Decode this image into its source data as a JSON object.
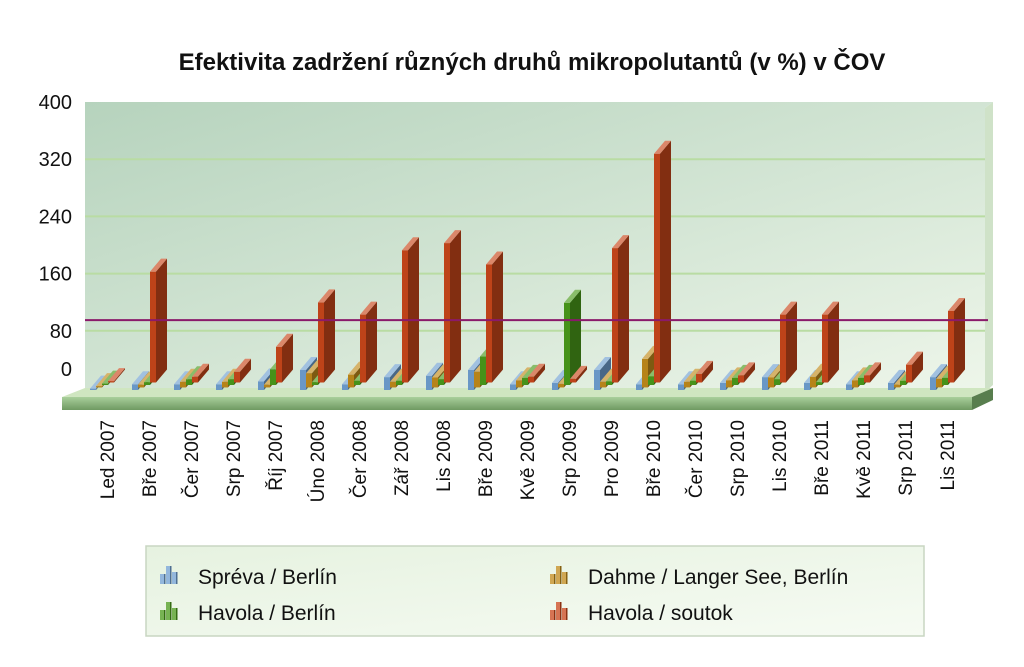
{
  "chart_data": {
    "type": "bar",
    "title": "Efektivita zadržení různých druhů mikropolutantů (v %) v ČOV",
    "xlabel": "",
    "ylabel": "",
    "ylim": [
      0,
      400
    ],
    "yticks": [
      "400",
      "320",
      "240",
      "160",
      "80",
      "0"
    ],
    "reference_line": 95,
    "categories": [
      "Led 2007",
      "Bře 2007",
      "Čer 2007",
      "Srp 2007",
      "Říj 2007",
      "Úno 2008",
      "Čer 2008",
      "Zář 2008",
      "Lis 2008",
      "Bře 2009",
      "Kvě 2009",
      "Srp 2009",
      "Pro 2009",
      "Bře 2010",
      "Čer 2010",
      "Srp 2010",
      "Lis 2010",
      "Bře 2011",
      "Kvě 2011",
      "Srp 2011",
      "Lis 2011"
    ],
    "series": [
      {
        "name": "Spréva / Berlín",
        "color": "#6f9fd0",
        "values": [
          2,
          8,
          8,
          8,
          12,
          28,
          8,
          18,
          20,
          28,
          8,
          10,
          28,
          8,
          8,
          10,
          18,
          10,
          8,
          10,
          18
        ]
      },
      {
        "name": "Dahme / Langer See, Berlín",
        "color": "#c08a1a",
        "values": [
          2,
          4,
          8,
          8,
          4,
          20,
          18,
          8,
          14,
          22,
          10,
          5,
          8,
          40,
          8,
          10,
          14,
          15,
          10,
          4,
          12
        ]
      },
      {
        "name": "Havola / Berlín",
        "color": "#4a9a1a",
        "values": [
          2,
          4,
          8,
          8,
          22,
          4,
          6,
          6,
          8,
          40,
          10,
          115,
          5,
          12,
          6,
          10,
          8,
          4,
          10,
          6,
          10
        ]
      },
      {
        "name": "Havola / soutok",
        "color": "#c8461a",
        "values": [
          2,
          155,
          8,
          15,
          50,
          112,
          95,
          185,
          195,
          165,
          8,
          5,
          188,
          320,
          12,
          10,
          95,
          95,
          10,
          25,
          100
        ]
      }
    ],
    "legend": {
      "position": "bottom"
    }
  }
}
